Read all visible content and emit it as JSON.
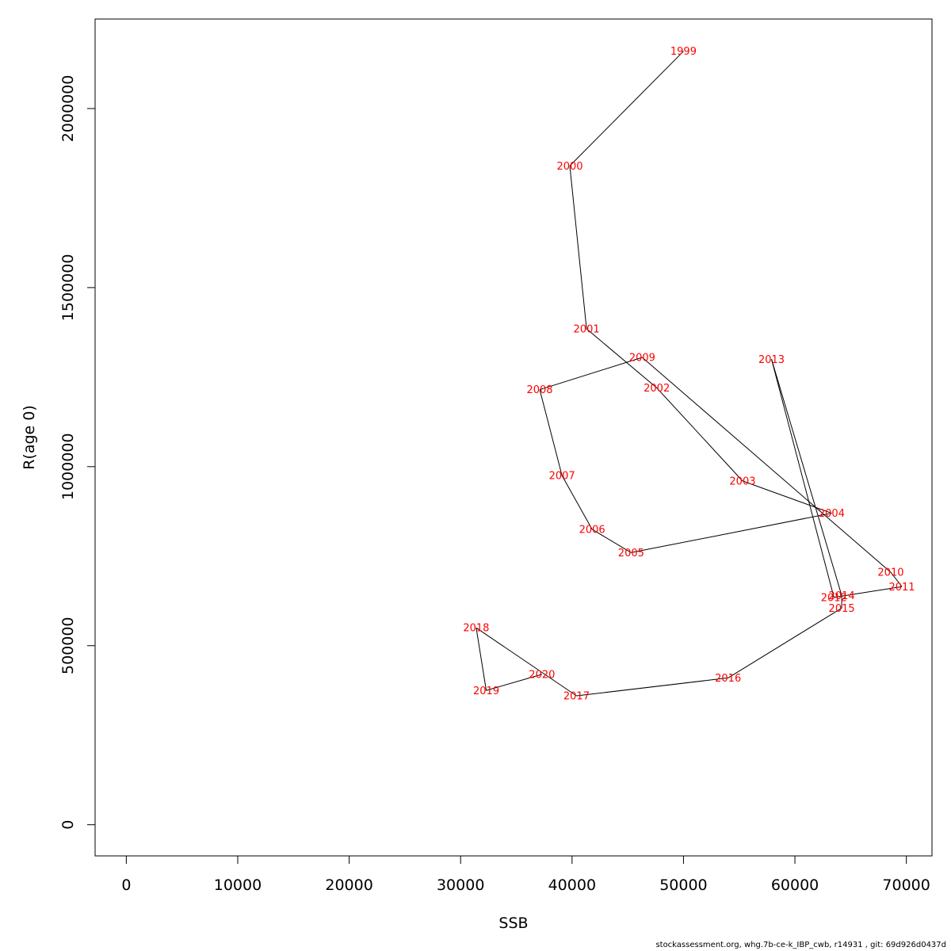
{
  "chart_data": {
    "type": "line",
    "title": "",
    "xlabel": "SSB",
    "ylabel": "R(age 0)",
    "xlim": [
      -2800,
      72300
    ],
    "ylim": [
      -87000,
      2250000
    ],
    "x_ticks": [
      0,
      10000,
      20000,
      30000,
      40000,
      50000,
      60000,
      70000
    ],
    "x_tick_labels": [
      "0",
      "10000",
      "20000",
      "30000",
      "40000",
      "50000",
      "60000",
      "70000"
    ],
    "y_ticks": [
      0,
      500000,
      1000000,
      1500000,
      2000000
    ],
    "y_tick_labels": [
      "0",
      "500000",
      "1000000",
      "1500000",
      "2000000"
    ],
    "grid": false,
    "line_color": "#000000",
    "label_color": "#ff0000",
    "series": [
      {
        "points": [
          {
            "year": "1999",
            "x": 50000,
            "y": 2160000
          },
          {
            "year": "2000",
            "x": 39800,
            "y": 1840000
          },
          {
            "year": "2001",
            "x": 41300,
            "y": 1385000
          },
          {
            "year": "2002",
            "x": 47600,
            "y": 1220000
          },
          {
            "year": "2003",
            "x": 55300,
            "y": 960000
          },
          {
            "year": "2004",
            "x": 63300,
            "y": 870000
          },
          {
            "year": "2005",
            "x": 45300,
            "y": 760000
          },
          {
            "year": "2006",
            "x": 41800,
            "y": 825000
          },
          {
            "year": "2007",
            "x": 39100,
            "y": 975000
          },
          {
            "year": "2008",
            "x": 37100,
            "y": 1215000
          },
          {
            "year": "2009",
            "x": 46300,
            "y": 1305000
          },
          {
            "year": "2010",
            "x": 68600,
            "y": 705000
          },
          {
            "year": "2011",
            "x": 69600,
            "y": 665000
          },
          {
            "year": "2012",
            "x": 63500,
            "y": 635000
          },
          {
            "year": "2013",
            "x": 57900,
            "y": 1300000
          },
          {
            "year": "2014",
            "x": 64200,
            "y": 640000
          },
          {
            "year": "2015",
            "x": 64200,
            "y": 605000
          },
          {
            "year": "2016",
            "x": 54000,
            "y": 410000
          },
          {
            "year": "2017",
            "x": 40400,
            "y": 360000
          },
          {
            "year": "2018",
            "x": 31400,
            "y": 550000
          },
          {
            "year": "2019",
            "x": 32300,
            "y": 375000
          },
          {
            "year": "2020",
            "x": 37300,
            "y": 420000
          }
        ]
      }
    ]
  },
  "footer_text": "stockassessment.org, whg.7b-ce-k_IBP_cwb, r14931 , git: 69d926d0437d"
}
